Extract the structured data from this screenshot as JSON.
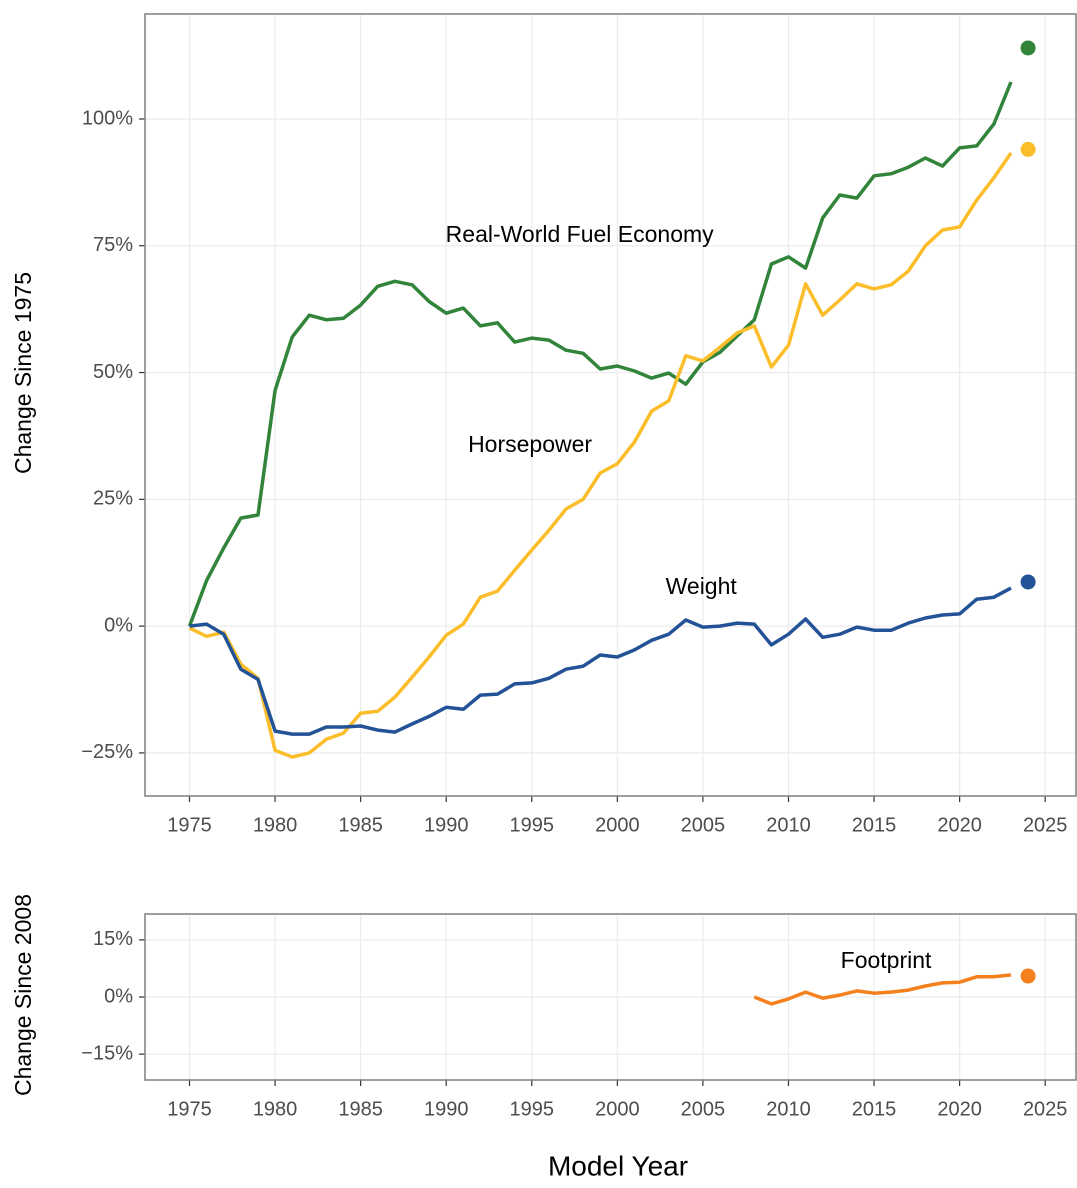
{
  "chart_data": [
    {
      "type": "line",
      "ylabel": "Change Since 1975",
      "x": [
        1975,
        1976,
        1977,
        1978,
        1979,
        1980,
        1981,
        1982,
        1983,
        1984,
        1985,
        1986,
        1987,
        1988,
        1989,
        1990,
        1991,
        1992,
        1993,
        1994,
        1995,
        1996,
        1997,
        1998,
        1999,
        2000,
        2001,
        2002,
        2003,
        2004,
        2005,
        2006,
        2007,
        2008,
        2009,
        2010,
        2011,
        2012,
        2013,
        2014,
        2015,
        2016,
        2017,
        2018,
        2019,
        2020,
        2021,
        2022,
        2023
      ],
      "series": [
        {
          "name": "Real-World Fuel Economy",
          "color": "#31843a",
          "values": [
            0,
            9,
            15.4,
            21.3,
            21.9,
            46.5,
            57,
            61.3,
            60.4,
            60.7,
            63.3,
            67,
            68,
            67.3,
            64,
            61.7,
            62.7,
            59.2,
            59.8,
            56,
            56.8,
            56.4,
            54.4,
            53.8,
            50.7,
            51.3,
            50.3,
            48.9,
            49.9,
            47.7,
            52.1,
            54,
            57.2,
            60.4,
            71.4,
            72.8,
            70.6,
            80.5,
            85,
            84.4,
            88.8,
            89.2,
            90.5,
            92.3,
            90.7,
            94.3,
            94.7,
            99,
            107.3
          ],
          "points": [
            {
              "x": 2024,
              "y": 114
            }
          ]
        },
        {
          "name": "Horsepower",
          "color": "#fbbd2a",
          "values": [
            -0.4,
            -2,
            -1.2,
            -7.5,
            -10.3,
            -24.5,
            -25.8,
            -25,
            -22.3,
            -21.1,
            -17.2,
            -16.8,
            -14,
            -10.1,
            -6.1,
            -1.8,
            0.4,
            5.7,
            6.9,
            11,
            15,
            18.9,
            23.1,
            25,
            30.2,
            32,
            36.3,
            42.4,
            44.4,
            53.3,
            52.3,
            55,
            57.8,
            59.2,
            51.1,
            55.4,
            67.5,
            61.3,
            64.3,
            67.5,
            66.5,
            67.3,
            70,
            75,
            78.1,
            78.7,
            84,
            88.4,
            93.3
          ],
          "points": [
            {
              "x": 2024,
              "y": 94
            }
          ]
        },
        {
          "name": "Weight",
          "color": "#235396",
          "values": [
            0,
            0.4,
            -1.6,
            -8.5,
            -10.5,
            -20.7,
            -21.3,
            -21.3,
            -19.9,
            -19.9,
            -19.7,
            -20.5,
            -20.9,
            -19.3,
            -17.8,
            -16,
            -16.4,
            -13.6,
            -13.4,
            -11.4,
            -11.2,
            -10.3,
            -8.5,
            -7.9,
            -5.7,
            -6.1,
            -4.7,
            -2.8,
            -1.6,
            1.2,
            -0.2,
            0,
            0.6,
            0.4,
            -3.7,
            -1.6,
            1.4,
            -2.2,
            -1.6,
            -0.2,
            -0.8,
            -0.8,
            0.6,
            1.6,
            2.2,
            2.4,
            5.3,
            5.7,
            7.5
          ],
          "points": [
            {
              "x": 2024,
              "y": 8.7
            }
          ]
        }
      ],
      "annotations": [
        {
          "text": "Real-World Fuel Economy",
          "x": 1997.8,
          "y": 76.9
        },
        {
          "text": "Horsepower",
          "x": 1994.9,
          "y": 35.5
        },
        {
          "text": "Weight",
          "x": 2004.9,
          "y": 7.5
        }
      ],
      "xlim": [
        1972.4,
        2026.8
      ],
      "xticks": [
        1975,
        1980,
        1985,
        1990,
        1995,
        2000,
        2005,
        2010,
        2015,
        2020,
        2025
      ],
      "ylim": [
        -33.5,
        120.7
      ],
      "yticks": [
        {
          "value": -25,
          "label": "−25%"
        },
        {
          "value": 0,
          "label": "0%"
        },
        {
          "value": 25,
          "label": "25%"
        },
        {
          "value": 50,
          "label": "50%"
        },
        {
          "value": 75,
          "label": "75%"
        },
        {
          "value": 100,
          "label": "100%"
        }
      ],
      "grid": true
    },
    {
      "type": "line",
      "ylabel": "Change Since 2008",
      "xlabel": "Model Year",
      "x": [
        2008,
        2009,
        2010,
        2011,
        2012,
        2013,
        2014,
        2015,
        2016,
        2017,
        2018,
        2019,
        2020,
        2021,
        2022,
        2023
      ],
      "series": [
        {
          "name": "Footprint",
          "color": "#f5801e",
          "values": [
            0,
            -1.8,
            -0.5,
            1.3,
            -0.3,
            0.5,
            1.6,
            1,
            1.3,
            1.8,
            2.9,
            3.7,
            3.9,
            5.3,
            5.3,
            5.8
          ],
          "points": [
            {
              "x": 2024,
              "y": 5.5
            }
          ]
        }
      ],
      "annotations": [
        {
          "text": "Footprint",
          "x": 2015.7,
          "y": 9.2
        }
      ],
      "xlim": [
        1972.4,
        2026.8
      ],
      "xticks": [
        1975,
        1980,
        1985,
        1990,
        1995,
        2000,
        2005,
        2010,
        2015,
        2020,
        2025
      ],
      "ylim": [
        -21.8,
        21.8
      ],
      "yticks": [
        {
          "value": -15,
          "label": "−15%"
        },
        {
          "value": 0,
          "label": "0%"
        },
        {
          "value": 15,
          "label": "15%"
        }
      ],
      "grid": true
    }
  ]
}
